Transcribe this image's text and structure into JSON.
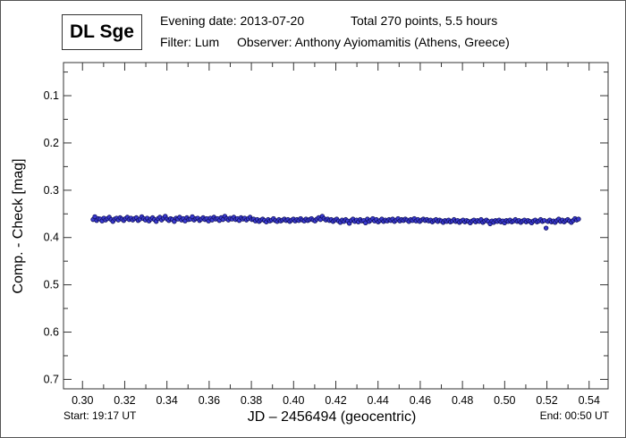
{
  "header": {
    "star": "DL Sge",
    "line1_date": "Evening date: 2013-07-20",
    "line1_total": "Total 270 points, 5.5 hours",
    "line2_filter": "Filter: Lum",
    "line2_observer": "Observer: Anthony Ayiomamitis (Athens, Greece)"
  },
  "footer": {
    "start": "Start: 19:17 UT",
    "end": "End: 00:50 UT"
  },
  "colors": {
    "marker_fill": "#3a3ad0",
    "marker_stroke": "#10105a",
    "frame": "#333333"
  },
  "chart_data": {
    "type": "scatter",
    "xlabel": "JD – 2456494  (geocentric)",
    "ylabel": "Comp. - Check [mag]",
    "xlim": [
      0.291,
      0.549
    ],
    "ylim": [
      0.03,
      0.72
    ],
    "y_inverted": true,
    "grid": false,
    "xticks": [
      "0.30",
      "0.32",
      "0.34",
      "0.36",
      "0.38",
      "0.40",
      "0.42",
      "0.44",
      "0.46",
      "0.48",
      "0.50",
      "0.52",
      "0.54"
    ],
    "yticks": [
      "0.1",
      "0.2",
      "0.3",
      "0.4",
      "0.5",
      "0.6",
      "0.7"
    ],
    "series": [
      {
        "name": "Comp. - Check",
        "x_start": 0.305,
        "x_end": 0.535,
        "y": [
          0.362,
          0.356,
          0.364,
          0.36,
          0.361,
          0.365,
          0.359,
          0.363,
          0.36,
          0.357,
          0.362,
          0.366,
          0.361,
          0.359,
          0.363,
          0.358,
          0.361,
          0.364,
          0.36,
          0.357,
          0.362,
          0.359,
          0.363,
          0.36,
          0.358,
          0.364,
          0.361,
          0.356,
          0.36,
          0.363,
          0.359,
          0.365,
          0.361,
          0.358,
          0.362,
          0.366,
          0.36,
          0.357,
          0.363,
          0.359,
          0.355,
          0.361,
          0.364,
          0.36,
          0.362,
          0.366,
          0.359,
          0.361,
          0.357,
          0.363,
          0.36,
          0.365,
          0.358,
          0.362,
          0.361,
          0.356,
          0.363,
          0.36,
          0.359,
          0.364,
          0.361,
          0.358,
          0.362,
          0.36,
          0.365,
          0.359,
          0.363,
          0.357,
          0.361,
          0.36,
          0.364,
          0.358,
          0.362,
          0.355,
          0.36,
          0.363,
          0.359,
          0.361,
          0.357,
          0.362,
          0.36,
          0.364,
          0.358,
          0.361,
          0.359,
          0.363,
          0.36,
          0.357,
          0.362,
          0.361,
          0.365,
          0.362,
          0.366,
          0.363,
          0.361,
          0.364,
          0.367,
          0.362,
          0.365,
          0.363,
          0.36,
          0.364,
          0.366,
          0.362,
          0.365,
          0.363,
          0.361,
          0.364,
          0.362,
          0.366,
          0.363,
          0.361,
          0.365,
          0.362,
          0.364,
          0.36,
          0.363,
          0.365,
          0.361,
          0.364,
          0.362,
          0.36,
          0.363,
          0.365,
          0.361,
          0.358,
          0.362,
          0.355,
          0.36,
          0.363,
          0.361,
          0.364,
          0.362,
          0.366,
          0.363,
          0.361,
          0.365,
          0.368,
          0.363,
          0.366,
          0.362,
          0.365,
          0.37,
          0.364,
          0.361,
          0.366,
          0.363,
          0.367,
          0.362,
          0.365,
          0.364,
          0.369,
          0.361,
          0.366,
          0.363,
          0.36,
          0.365,
          0.362,
          0.367,
          0.364,
          0.361,
          0.366,
          0.363,
          0.365,
          0.362,
          0.364,
          0.361,
          0.366,
          0.363,
          0.36,
          0.365,
          0.362,
          0.364,
          0.361,
          0.363,
          0.366,
          0.362,
          0.364,
          0.36,
          0.365,
          0.362,
          0.366,
          0.363,
          0.361,
          0.364,
          0.362,
          0.365,
          0.363,
          0.367,
          0.364,
          0.362,
          0.366,
          0.363,
          0.365,
          0.368,
          0.364,
          0.366,
          0.363,
          0.367,
          0.365,
          0.362,
          0.366,
          0.364,
          0.368,
          0.365,
          0.363,
          0.367,
          0.364,
          0.366,
          0.369,
          0.365,
          0.363,
          0.367,
          0.364,
          0.366,
          0.362,
          0.368,
          0.365,
          0.363,
          0.366,
          0.371,
          0.365,
          0.368,
          0.364,
          0.366,
          0.363,
          0.367,
          0.365,
          0.369,
          0.364,
          0.366,
          0.363,
          0.367,
          0.365,
          0.362,
          0.366,
          0.364,
          0.368,
          0.365,
          0.363,
          0.367,
          0.364,
          0.366,
          0.369,
          0.365,
          0.363,
          0.367,
          0.365,
          0.362,
          0.366,
          0.364,
          0.38,
          0.366,
          0.363,
          0.367,
          0.365,
          0.368,
          0.364,
          0.361,
          0.366,
          0.363,
          0.367,
          0.364,
          0.362,
          0.365,
          0.368,
          0.364,
          0.36,
          0.363,
          0.361
        ]
      }
    ]
  }
}
